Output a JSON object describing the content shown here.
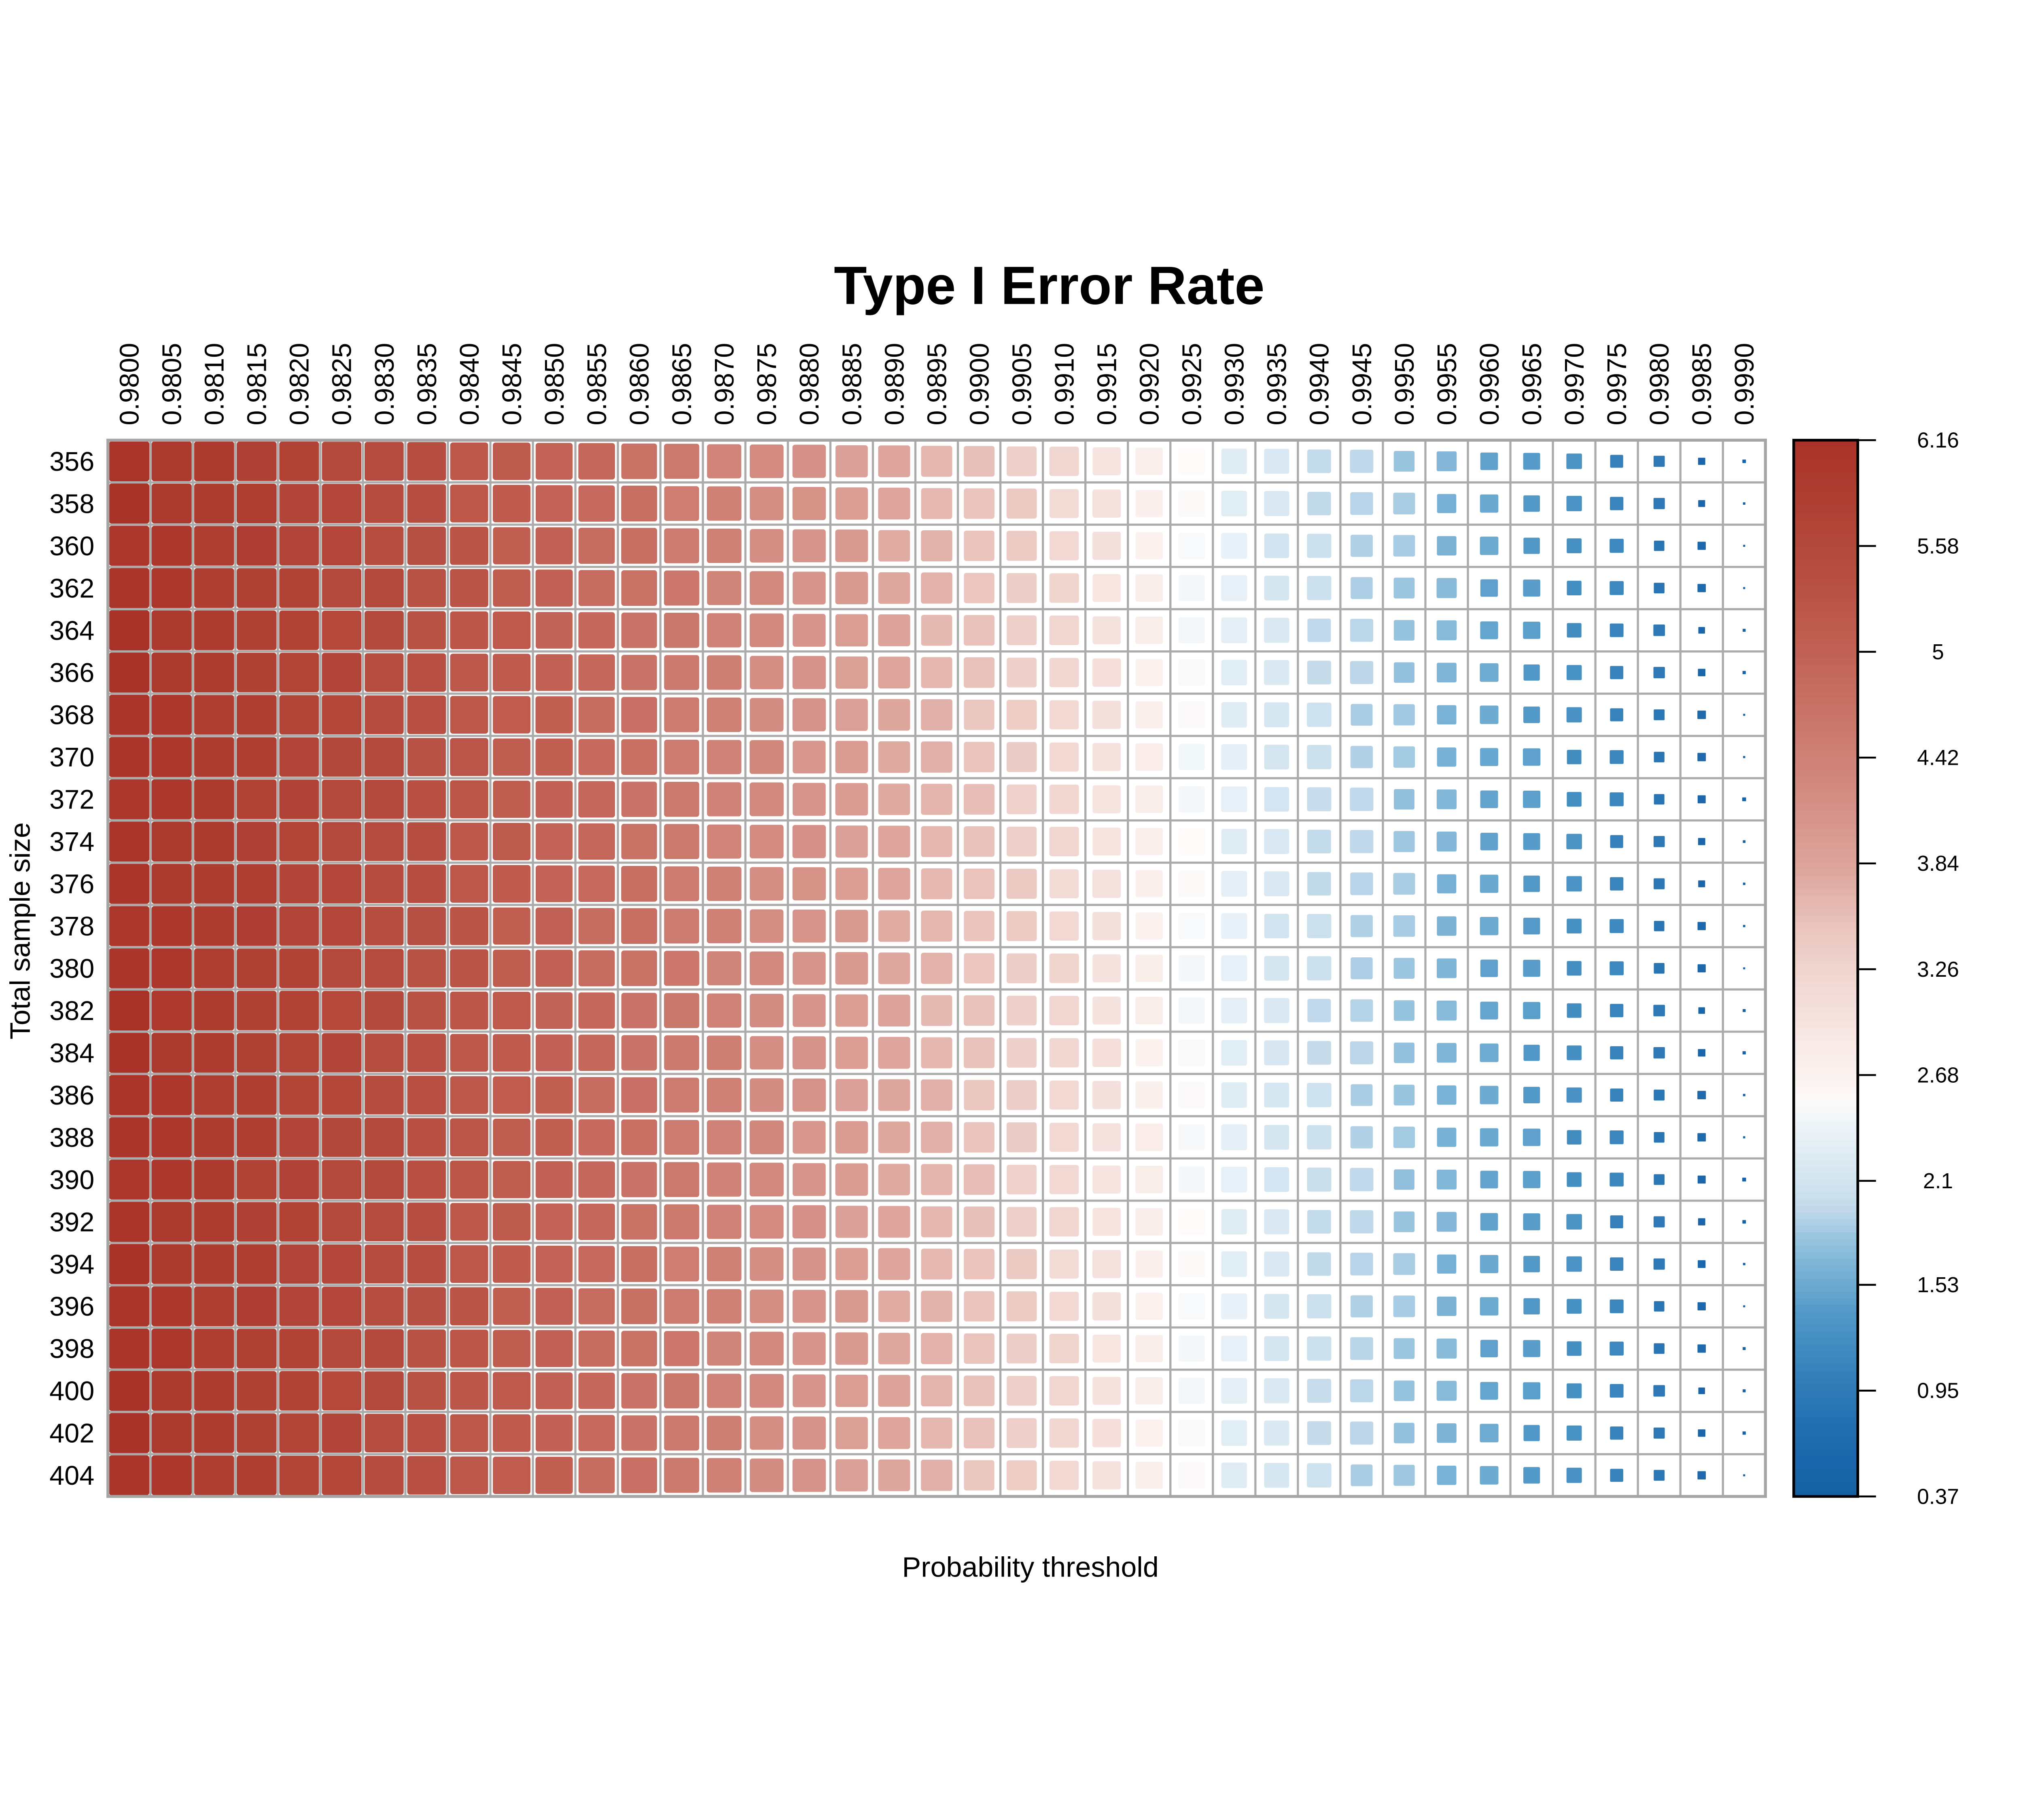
{
  "chart_data": {
    "type": "heatmap",
    "title": "Type I Error Rate",
    "xlabel": "Probability threshold",
    "ylabel": "Total sample size",
    "legend_position": "right",
    "grid": true,
    "x_categories": [
      "0.9800",
      "0.9805",
      "0.9810",
      "0.9815",
      "0.9820",
      "0.9825",
      "0.9830",
      "0.9835",
      "0.9840",
      "0.9845",
      "0.9850",
      "0.9855",
      "0.9860",
      "0.9865",
      "0.9870",
      "0.9875",
      "0.9880",
      "0.9885",
      "0.9890",
      "0.9895",
      "0.9900",
      "0.9905",
      "0.9910",
      "0.9915",
      "0.9920",
      "0.9925",
      "0.9930",
      "0.9935",
      "0.9940",
      "0.9945",
      "0.9950",
      "0.9955",
      "0.9960",
      "0.9965",
      "0.9970",
      "0.9975",
      "0.9980",
      "0.9985",
      "0.9990"
    ],
    "y_categories": [
      356,
      358,
      360,
      362,
      364,
      366,
      368,
      370,
      372,
      374,
      376,
      378,
      380,
      382,
      384,
      386,
      388,
      390,
      392,
      394,
      396,
      398,
      400,
      402,
      404
    ],
    "values": [
      [
        6.12,
        5.97,
        5.94,
        5.78,
        5.73,
        5.56,
        5.5,
        5.43,
        5.2,
        5.14,
        4.97,
        4.89,
        4.68,
        4.58,
        4.36,
        4.25,
        4.15,
        3.9,
        3.82,
        3.62,
        3.54,
        3.33,
        3.23,
        2.96,
        2.75,
        2.55,
        2.25,
        2.17,
        1.97,
        1.94,
        1.78,
        1.68,
        1.46,
        1.4,
        1.3,
        1.05,
        0.92,
        0.57,
        0.44
      ],
      [
        6.13,
        5.96,
        5.9,
        5.85,
        5.65,
        5.62,
        5.47,
        5.42,
        5.23,
        5.15,
        4.96,
        4.85,
        4.75,
        4.5,
        4.42,
        4.22,
        4.14,
        3.93,
        3.83,
        3.61,
        3.5,
        3.4,
        3.15,
        3.02,
        2.72,
        2.54,
        2.28,
        2.18,
        1.96,
        1.9,
        1.85,
        1.6,
        1.52,
        1.37,
        1.29,
        1.08,
        0.93,
        0.56,
        0.4
      ],
      [
        6.05,
        6.02,
        5.87,
        5.84,
        5.68,
        5.63,
        5.46,
        5.38,
        5.3,
        5.07,
        5.02,
        4.82,
        4.74,
        4.53,
        4.43,
        4.21,
        4.1,
        4.0,
        3.75,
        3.67,
        3.47,
        3.39,
        3.18,
        3.03,
        2.71,
        2.5,
        2.35,
        2.1,
        2.02,
        1.87,
        1.84,
        1.63,
        1.53,
        1.36,
        1.25,
        1.15,
        0.85,
        0.62,
        0.37
      ],
      [
        6.08,
        6.03,
        5.86,
        5.8,
        5.75,
        5.55,
        5.52,
        5.35,
        5.29,
        5.1,
        5.03,
        4.81,
        4.7,
        4.6,
        4.35,
        4.27,
        4.07,
        3.99,
        3.78,
        3.68,
        3.46,
        3.35,
        3.25,
        2.95,
        2.77,
        2.47,
        2.34,
        2.13,
        2.03,
        1.86,
        1.8,
        1.7,
        1.45,
        1.42,
        1.22,
        1.14,
        0.88,
        0.63,
        0.37
      ],
      [
        6.15,
        5.95,
        5.92,
        5.77,
        5.74,
        5.58,
        5.53,
        5.34,
        5.25,
        5.17,
        4.95,
        4.87,
        4.67,
        4.59,
        4.38,
        4.28,
        4.06,
        3.95,
        3.85,
        3.6,
        3.52,
        3.32,
        3.24,
        2.98,
        2.78,
        2.46,
        2.3,
        2.2,
        1.95,
        1.92,
        1.77,
        1.69,
        1.48,
        1.43,
        1.21,
        1.1,
        0.95,
        0.55,
        0.42
      ],
      [
        6.14,
        5.98,
        5.93,
        5.76,
        5.7,
        5.65,
        5.45,
        5.4,
        5.22,
        5.16,
        4.98,
        4.88,
        4.66,
        4.55,
        4.45,
        4.2,
        4.12,
        3.92,
        3.84,
        3.63,
        3.53,
        3.31,
        3.2,
        3.05,
        2.7,
        2.52,
        2.27,
        2.19,
        1.98,
        1.93,
        1.76,
        1.65,
        1.55,
        1.35,
        1.27,
        1.07,
        0.94,
        0.58,
        0.43
      ],
      [
        6.1,
        6.05,
        5.85,
        5.82,
        5.67,
        5.64,
        5.48,
        5.41,
        5.21,
        5.12,
        5.05,
        4.8,
        4.72,
        4.52,
        4.44,
        4.23,
        4.13,
        3.91,
        3.8,
        3.7,
        3.45,
        3.37,
        3.17,
        3.04,
        2.73,
        2.53,
        2.26,
        2.15,
        2.05,
        1.85,
        1.82,
        1.62,
        1.54,
        1.38,
        1.28,
        1.06,
        0.9,
        0.65,
        0.37
      ],
      [
        6.07,
        6.04,
        5.88,
        5.83,
        5.66,
        5.6,
        5.55,
        5.33,
        5.27,
        5.09,
        5.04,
        4.83,
        4.73,
        4.51,
        4.4,
        4.3,
        4.05,
        3.97,
        3.77,
        3.69,
        3.48,
        3.38,
        3.16,
        3.0,
        2.8,
        2.45,
        2.32,
        2.12,
        2.04,
        1.88,
        1.83,
        1.61,
        1.5,
        1.45,
        1.2,
        1.12,
        0.87,
        0.64,
        0.38
      ],
      [
        6.06,
        6.0,
        5.95,
        5.75,
        5.72,
        5.57,
        5.54,
        5.36,
        5.28,
        5.08,
        5.0,
        4.9,
        4.65,
        4.57,
        4.37,
        4.29,
        4.08,
        3.98,
        3.76,
        3.65,
        3.55,
        3.3,
        3.22,
        2.97,
        2.79,
        2.48,
        2.33,
        2.11,
        2.0,
        1.95,
        1.75,
        1.67,
        1.47,
        1.44,
        1.23,
        1.13,
        0.86,
        0.6,
        0.45
      ],
      [
        6.12,
        5.97,
        5.94,
        5.78,
        5.71,
        5.56,
        5.5,
        5.43,
        5.2,
        5.14,
        4.97,
        4.89,
        4.68,
        4.58,
        4.36,
        4.25,
        4.15,
        3.9,
        3.82,
        3.62,
        3.51,
        3.33,
        3.23,
        2.96,
        2.75,
        2.55,
        2.25,
        2.17,
        1.97,
        1.94,
        1.81,
        1.68,
        1.46,
        1.4,
        1.3,
        1.05,
        0.92,
        0.57,
        0.41
      ],
      [
        6.11,
        5.96,
        5.9,
        5.85,
        5.65,
        5.62,
        5.47,
        5.42,
        5.23,
        5.15,
        4.96,
        4.85,
        4.75,
        4.53,
        4.42,
        4.22,
        4.14,
        3.93,
        3.83,
        3.61,
        3.5,
        3.4,
        3.15,
        3.02,
        2.72,
        2.54,
        2.31,
        2.18,
        1.96,
        1.9,
        1.85,
        1.6,
        1.52,
        1.37,
        1.29,
        1.08,
        0.91,
        0.56,
        0.4
      ],
      [
        6.05,
        6.02,
        5.89,
        5.84,
        5.68,
        5.63,
        5.46,
        5.38,
        5.3,
        5.07,
        5.02,
        4.82,
        4.74,
        4.53,
        4.43,
        4.21,
        4.1,
        4.0,
        3.75,
        3.64,
        3.47,
        3.39,
        3.18,
        3.03,
        2.71,
        2.5,
        2.35,
        2.1,
        2.02,
        1.87,
        1.84,
        1.63,
        1.53,
        1.39,
        1.25,
        1.15,
        0.85,
        0.62,
        0.39
      ],
      [
        6.08,
        6.03,
        5.86,
        5.8,
        5.75,
        5.55,
        5.49,
        5.35,
        5.29,
        5.1,
        5.03,
        4.81,
        4.7,
        4.6,
        4.35,
        4.27,
        4.07,
        3.99,
        3.78,
        3.68,
        3.46,
        3.35,
        3.25,
        2.99,
        2.77,
        2.47,
        2.34,
        2.13,
        2.03,
        1.86,
        1.8,
        1.66,
        1.45,
        1.42,
        1.22,
        1.14,
        0.88,
        0.61,
        0.37
      ],
      [
        6.15,
        5.99,
        5.92,
        5.77,
        5.74,
        5.58,
        5.53,
        5.34,
        5.25,
        5.17,
        4.95,
        4.87,
        4.67,
        4.59,
        4.38,
        4.24,
        4.06,
        3.95,
        3.85,
        3.6,
        3.52,
        3.32,
        3.24,
        2.98,
        2.78,
        2.46,
        2.3,
        2.2,
        1.95,
        1.89,
        1.77,
        1.69,
        1.48,
        1.43,
        1.21,
        1.08,
        0.95,
        0.55,
        0.42
      ],
      [
        6.14,
        5.98,
        5.93,
        5.79,
        5.7,
        5.65,
        5.45,
        5.4,
        5.22,
        5.16,
        4.98,
        4.88,
        4.66,
        4.55,
        4.45,
        4.2,
        4.12,
        3.94,
        3.84,
        3.63,
        3.53,
        3.31,
        3.2,
        3.05,
        2.7,
        2.52,
        2.27,
        2.16,
        1.98,
        1.93,
        1.76,
        1.65,
        1.55,
        1.35,
        1.24,
        1.07,
        0.94,
        0.58,
        0.43
      ],
      [
        6.1,
        6.05,
        5.85,
        5.82,
        5.67,
        5.61,
        5.48,
        5.41,
        5.21,
        5.12,
        5.05,
        4.8,
        4.72,
        4.52,
        4.44,
        4.23,
        4.13,
        3.91,
        3.8,
        3.7,
        3.45,
        3.36,
        3.17,
        3.04,
        2.73,
        2.53,
        2.26,
        2.15,
        2.05,
        1.85,
        1.79,
        1.62,
        1.54,
        1.38,
        1.28,
        1.06,
        0.9,
        0.65,
        0.4
      ],
      [
        6.07,
        6.04,
        5.88,
        5.83,
        5.66,
        5.6,
        5.55,
        5.37,
        5.27,
        5.09,
        5.04,
        4.83,
        4.73,
        4.51,
        4.4,
        4.3,
        4.05,
        3.97,
        3.79,
        3.69,
        3.48,
        3.38,
        3.16,
        3.0,
        2.8,
        2.49,
        2.32,
        2.12,
        2.04,
        1.88,
        1.83,
        1.61,
        1.52,
        1.45,
        1.2,
        1.12,
        0.87,
        0.64,
        0.38
      ],
      [
        6.06,
        6.0,
        5.95,
        5.75,
        5.72,
        5.57,
        5.54,
        5.36,
        5.28,
        5.11,
        5.0,
        4.9,
        4.65,
        4.57,
        4.37,
        4.29,
        4.08,
        3.98,
        3.76,
        3.65,
        3.55,
        3.3,
        3.19,
        2.97,
        2.79,
        2.48,
        2.33,
        2.11,
        2.01,
        1.95,
        1.75,
        1.67,
        1.47,
        1.44,
        1.23,
        1.13,
        0.89,
        0.6,
        0.45
      ],
      [
        6.12,
        5.97,
        5.91,
        5.78,
        5.73,
        5.56,
        5.5,
        5.43,
        5.2,
        5.14,
        4.97,
        4.89,
        4.68,
        4.58,
        4.39,
        4.25,
        4.15,
        3.9,
        3.82,
        3.62,
        3.54,
        3.33,
        3.23,
        2.96,
        2.76,
        2.55,
        2.25,
        2.17,
        1.97,
        1.94,
        1.78,
        1.68,
        1.46,
        1.41,
        1.3,
        1.05,
        0.92,
        0.57,
        0.44
      ],
      [
        6.13,
        5.96,
        5.9,
        5.85,
        5.68,
        5.62,
        5.47,
        5.42,
        5.23,
        5.15,
        4.96,
        4.85,
        4.75,
        4.5,
        4.42,
        4.22,
        4.11,
        3.93,
        3.83,
        3.61,
        3.5,
        3.4,
        3.15,
        3.02,
        2.72,
        2.54,
        2.29,
        2.18,
        1.96,
        1.9,
        1.85,
        1.6,
        1.52,
        1.37,
        1.29,
        1.08,
        0.93,
        0.59,
        0.4
      ],
      [
        6.09,
        6.02,
        5.87,
        5.84,
        5.68,
        5.63,
        5.46,
        5.38,
        5.3,
        5.07,
        5.02,
        4.82,
        4.71,
        4.53,
        4.43,
        4.21,
        4.1,
        4.0,
        3.75,
        3.67,
        3.47,
        3.39,
        3.18,
        3.03,
        2.71,
        2.5,
        2.35,
        2.14,
        2.02,
        1.87,
        1.84,
        1.63,
        1.53,
        1.36,
        1.25,
        1.11,
        0.85,
        0.62,
        0.37
      ],
      [
        6.08,
        6.03,
        5.86,
        5.8,
        5.75,
        5.55,
        5.52,
        5.35,
        5.26,
        5.1,
        5.03,
        4.81,
        4.7,
        4.6,
        4.35,
        4.27,
        4.07,
        3.99,
        3.78,
        3.68,
        3.49,
        3.35,
        3.25,
        2.95,
        2.77,
        2.47,
        2.34,
        2.13,
        2.03,
        1.91,
        1.8,
        1.7,
        1.45,
        1.42,
        1.22,
        1.14,
        0.88,
        0.63,
        0.42
      ],
      [
        6.15,
        5.95,
        5.92,
        5.77,
        5.74,
        5.58,
        5.53,
        5.34,
        5.25,
        5.17,
        4.99,
        4.87,
        4.67,
        4.59,
        4.38,
        4.28,
        4.06,
        3.95,
        3.85,
        3.66,
        3.52,
        3.32,
        3.24,
        2.98,
        2.78,
        2.46,
        2.3,
        2.2,
        1.99,
        1.92,
        1.77,
        1.69,
        1.48,
        1.43,
        1.26,
        1.1,
        0.95,
        0.55,
        0.42
      ],
      [
        6.14,
        5.98,
        5.93,
        5.76,
        5.7,
        5.65,
        5.45,
        5.4,
        5.22,
        5.16,
        4.98,
        4.86,
        4.66,
        4.55,
        4.45,
        4.2,
        4.12,
        3.92,
        3.84,
        3.63,
        3.53,
        3.34,
        3.2,
        3.05,
        2.7,
        2.52,
        2.27,
        2.19,
        1.98,
        1.93,
        1.76,
        1.64,
        1.55,
        1.35,
        1.27,
        1.07,
        0.92,
        0.58,
        0.43
      ],
      [
        6.1,
        6.05,
        5.85,
        5.82,
        5.67,
        5.64,
        5.48,
        5.41,
        5.21,
        5.12,
        5.05,
        4.8,
        4.72,
        4.56,
        4.44,
        4.23,
        4.13,
        3.91,
        3.8,
        3.7,
        3.45,
        3.37,
        3.17,
        3.01,
        2.73,
        2.53,
        2.26,
        2.15,
        2.05,
        1.85,
        1.81,
        1.62,
        1.54,
        1.38,
        1.28,
        1.06,
        0.9,
        0.63,
        0.37
      ]
    ],
    "colorbar": {
      "min": 0.37,
      "max": 6.16,
      "tick_labels": [
        "6.16",
        "5.58",
        "5",
        "4.42",
        "3.84",
        "3.26",
        "2.68",
        "2.1",
        "1.53",
        "0.95",
        "0.37"
      ],
      "tick_values": [
        6.16,
        5.58,
        5,
        4.42,
        3.84,
        3.26,
        2.68,
        2.1,
        1.53,
        0.95,
        0.37
      ]
    },
    "color_scale": [
      [
        6.16,
        "#A93228"
      ],
      [
        5.5,
        "#B44B3E"
      ],
      [
        5.0,
        "#C26155"
      ],
      [
        4.4,
        "#CF8277"
      ],
      [
        3.8,
        "#DDA69D"
      ],
      [
        3.55,
        "#E7BFB8"
      ],
      [
        3.3,
        "#EFD2CC"
      ],
      [
        3.0,
        "#F5E2DE"
      ],
      [
        2.7,
        "#FBF1EF"
      ],
      [
        2.55,
        "#FDFAF9"
      ],
      [
        2.45,
        "#F2F7FA"
      ],
      [
        2.3,
        "#E3EEF5"
      ],
      [
        2.15,
        "#D7E7F1"
      ],
      [
        2.0,
        "#C9DEEC"
      ],
      [
        1.9,
        "#B8D4E8"
      ],
      [
        1.8,
        "#9CC6DF"
      ],
      [
        1.65,
        "#7FB5D6"
      ],
      [
        1.5,
        "#68A7CF"
      ],
      [
        1.4,
        "#569BC9"
      ],
      [
        1.25,
        "#4690C2"
      ],
      [
        1.1,
        "#3A85BD"
      ],
      [
        0.9,
        "#2B76B4"
      ],
      [
        0.6,
        "#1C67AB"
      ],
      [
        0.37,
        "#1561A3"
      ]
    ],
    "size_scale": [
      [
        6.16,
        1.0
      ],
      [
        5.6,
        0.98
      ],
      [
        5.0,
        0.92
      ],
      [
        4.4,
        0.855
      ],
      [
        3.8,
        0.79
      ],
      [
        3.2,
        0.73
      ],
      [
        3.0,
        0.7
      ],
      [
        2.75,
        0.68
      ],
      [
        2.5,
        0.655
      ],
      [
        2.3,
        0.64
      ],
      [
        2.15,
        0.62
      ],
      [
        2.0,
        0.6
      ],
      [
        1.9,
        0.565
      ],
      [
        1.8,
        0.52
      ],
      [
        1.65,
        0.49
      ],
      [
        1.5,
        0.45
      ],
      [
        1.4,
        0.42
      ],
      [
        1.25,
        0.37
      ],
      [
        1.1,
        0.34
      ],
      [
        0.9,
        0.27
      ],
      [
        0.6,
        0.2
      ],
      [
        0.4,
        0.06
      ],
      [
        0.37,
        0.05
      ]
    ]
  },
  "style_colors": {
    "grid": "#ABABAB",
    "plot_border": "#A5A5A5",
    "colorbar_border": "#000000",
    "background": "#FFFFFF",
    "text": "#000000"
  }
}
